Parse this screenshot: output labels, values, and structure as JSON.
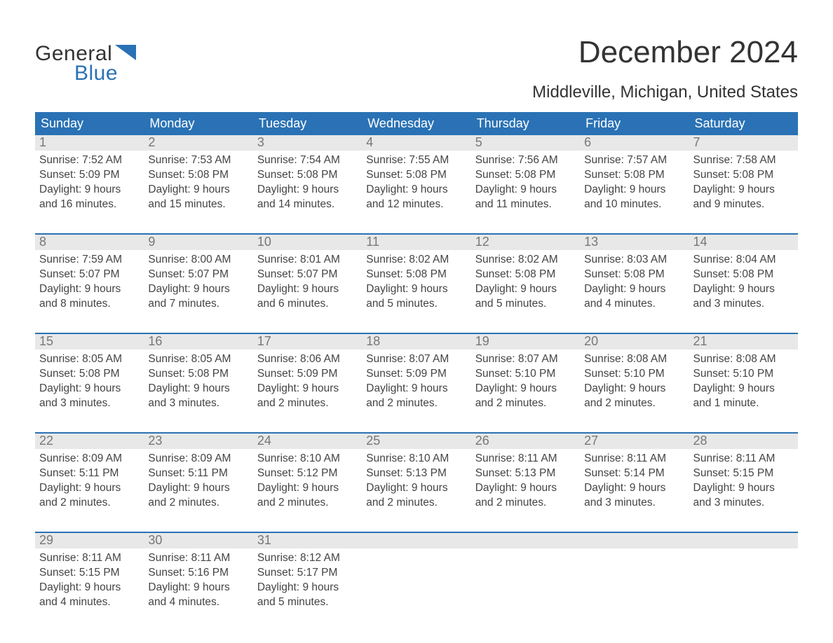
{
  "logo": {
    "general": "General",
    "blue": "Blue"
  },
  "header": {
    "month": "December 2024",
    "location": "Middleville, Michigan, United States"
  },
  "colors": {
    "brand_blue": "#2a72b5",
    "header_row_bg": "#e8e8e8",
    "text": "#444444",
    "bg": "#ffffff"
  },
  "calendar": {
    "weekdays": [
      "Sunday",
      "Monday",
      "Tuesday",
      "Wednesday",
      "Thursday",
      "Friday",
      "Saturday"
    ],
    "weeks": [
      [
        {
          "n": "1",
          "sunrise": "Sunrise: 7:52 AM",
          "sunset": "Sunset: 5:09 PM",
          "d1": "Daylight: 9 hours",
          "d2": "and 16 minutes."
        },
        {
          "n": "2",
          "sunrise": "Sunrise: 7:53 AM",
          "sunset": "Sunset: 5:08 PM",
          "d1": "Daylight: 9 hours",
          "d2": "and 15 minutes."
        },
        {
          "n": "3",
          "sunrise": "Sunrise: 7:54 AM",
          "sunset": "Sunset: 5:08 PM",
          "d1": "Daylight: 9 hours",
          "d2": "and 14 minutes."
        },
        {
          "n": "4",
          "sunrise": "Sunrise: 7:55 AM",
          "sunset": "Sunset: 5:08 PM",
          "d1": "Daylight: 9 hours",
          "d2": "and 12 minutes."
        },
        {
          "n": "5",
          "sunrise": "Sunrise: 7:56 AM",
          "sunset": "Sunset: 5:08 PM",
          "d1": "Daylight: 9 hours",
          "d2": "and 11 minutes."
        },
        {
          "n": "6",
          "sunrise": "Sunrise: 7:57 AM",
          "sunset": "Sunset: 5:08 PM",
          "d1": "Daylight: 9 hours",
          "d2": "and 10 minutes."
        },
        {
          "n": "7",
          "sunrise": "Sunrise: 7:58 AM",
          "sunset": "Sunset: 5:08 PM",
          "d1": "Daylight: 9 hours",
          "d2": "and 9 minutes."
        }
      ],
      [
        {
          "n": "8",
          "sunrise": "Sunrise: 7:59 AM",
          "sunset": "Sunset: 5:07 PM",
          "d1": "Daylight: 9 hours",
          "d2": "and 8 minutes."
        },
        {
          "n": "9",
          "sunrise": "Sunrise: 8:00 AM",
          "sunset": "Sunset: 5:07 PM",
          "d1": "Daylight: 9 hours",
          "d2": "and 7 minutes."
        },
        {
          "n": "10",
          "sunrise": "Sunrise: 8:01 AM",
          "sunset": "Sunset: 5:07 PM",
          "d1": "Daylight: 9 hours",
          "d2": "and 6 minutes."
        },
        {
          "n": "11",
          "sunrise": "Sunrise: 8:02 AM",
          "sunset": "Sunset: 5:08 PM",
          "d1": "Daylight: 9 hours",
          "d2": "and 5 minutes."
        },
        {
          "n": "12",
          "sunrise": "Sunrise: 8:02 AM",
          "sunset": "Sunset: 5:08 PM",
          "d1": "Daylight: 9 hours",
          "d2": "and 5 minutes."
        },
        {
          "n": "13",
          "sunrise": "Sunrise: 8:03 AM",
          "sunset": "Sunset: 5:08 PM",
          "d1": "Daylight: 9 hours",
          "d2": "and 4 minutes."
        },
        {
          "n": "14",
          "sunrise": "Sunrise: 8:04 AM",
          "sunset": "Sunset: 5:08 PM",
          "d1": "Daylight: 9 hours",
          "d2": "and 3 minutes."
        }
      ],
      [
        {
          "n": "15",
          "sunrise": "Sunrise: 8:05 AM",
          "sunset": "Sunset: 5:08 PM",
          "d1": "Daylight: 9 hours",
          "d2": "and 3 minutes."
        },
        {
          "n": "16",
          "sunrise": "Sunrise: 8:05 AM",
          "sunset": "Sunset: 5:08 PM",
          "d1": "Daylight: 9 hours",
          "d2": "and 3 minutes."
        },
        {
          "n": "17",
          "sunrise": "Sunrise: 8:06 AM",
          "sunset": "Sunset: 5:09 PM",
          "d1": "Daylight: 9 hours",
          "d2": "and 2 minutes."
        },
        {
          "n": "18",
          "sunrise": "Sunrise: 8:07 AM",
          "sunset": "Sunset: 5:09 PM",
          "d1": "Daylight: 9 hours",
          "d2": "and 2 minutes."
        },
        {
          "n": "19",
          "sunrise": "Sunrise: 8:07 AM",
          "sunset": "Sunset: 5:10 PM",
          "d1": "Daylight: 9 hours",
          "d2": "and 2 minutes."
        },
        {
          "n": "20",
          "sunrise": "Sunrise: 8:08 AM",
          "sunset": "Sunset: 5:10 PM",
          "d1": "Daylight: 9 hours",
          "d2": "and 2 minutes."
        },
        {
          "n": "21",
          "sunrise": "Sunrise: 8:08 AM",
          "sunset": "Sunset: 5:10 PM",
          "d1": "Daylight: 9 hours",
          "d2": "and 1 minute."
        }
      ],
      [
        {
          "n": "22",
          "sunrise": "Sunrise: 8:09 AM",
          "sunset": "Sunset: 5:11 PM",
          "d1": "Daylight: 9 hours",
          "d2": "and 2 minutes."
        },
        {
          "n": "23",
          "sunrise": "Sunrise: 8:09 AM",
          "sunset": "Sunset: 5:11 PM",
          "d1": "Daylight: 9 hours",
          "d2": "and 2 minutes."
        },
        {
          "n": "24",
          "sunrise": "Sunrise: 8:10 AM",
          "sunset": "Sunset: 5:12 PM",
          "d1": "Daylight: 9 hours",
          "d2": "and 2 minutes."
        },
        {
          "n": "25",
          "sunrise": "Sunrise: 8:10 AM",
          "sunset": "Sunset: 5:13 PM",
          "d1": "Daylight: 9 hours",
          "d2": "and 2 minutes."
        },
        {
          "n": "26",
          "sunrise": "Sunrise: 8:11 AM",
          "sunset": "Sunset: 5:13 PM",
          "d1": "Daylight: 9 hours",
          "d2": "and 2 minutes."
        },
        {
          "n": "27",
          "sunrise": "Sunrise: 8:11 AM",
          "sunset": "Sunset: 5:14 PM",
          "d1": "Daylight: 9 hours",
          "d2": "and 3 minutes."
        },
        {
          "n": "28",
          "sunrise": "Sunrise: 8:11 AM",
          "sunset": "Sunset: 5:15 PM",
          "d1": "Daylight: 9 hours",
          "d2": "and 3 minutes."
        }
      ],
      [
        {
          "n": "29",
          "sunrise": "Sunrise: 8:11 AM",
          "sunset": "Sunset: 5:15 PM",
          "d1": "Daylight: 9 hours",
          "d2": "and 4 minutes."
        },
        {
          "n": "30",
          "sunrise": "Sunrise: 8:11 AM",
          "sunset": "Sunset: 5:16 PM",
          "d1": "Daylight: 9 hours",
          "d2": "and 4 minutes."
        },
        {
          "n": "31",
          "sunrise": "Sunrise: 8:12 AM",
          "sunset": "Sunset: 5:17 PM",
          "d1": "Daylight: 9 hours",
          "d2": "and 5 minutes."
        },
        null,
        null,
        null,
        null
      ]
    ]
  }
}
